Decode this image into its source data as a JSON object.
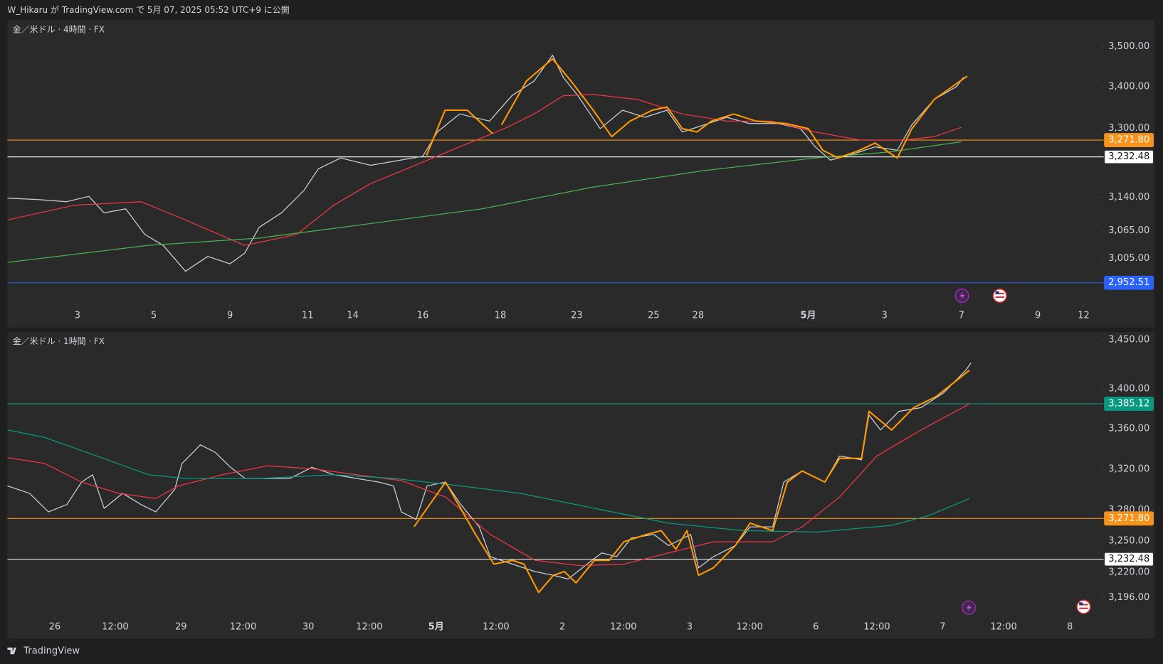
{
  "header": {
    "text": "W_Hikaru が TradingView.com で 5月 07, 2025 05:52 UTC+9 に公開"
  },
  "footer": {
    "brand": "TradingView"
  },
  "chart_data": [
    {
      "type": "line",
      "title": "金／米ドル · 4時間 · FX",
      "log": true,
      "grid": false,
      "xlim": [
        0,
        172
      ],
      "ylim": [
        2908,
        3567
      ],
      "xticks": [
        {
          "value": 11,
          "label": "3"
        },
        {
          "value": 23,
          "label": "5"
        },
        {
          "value": 35,
          "label": "9"
        },
        {
          "value": 47.2,
          "label": "11"
        },
        {
          "value": 54.3,
          "label": "14"
        },
        {
          "value": 65.3,
          "label": "16"
        },
        {
          "value": 77.5,
          "label": "18"
        },
        {
          "value": 89.5,
          "label": "23"
        },
        {
          "value": 101.6,
          "label": "25"
        },
        {
          "value": 108.6,
          "label": "28"
        },
        {
          "value": 125.9,
          "label": "5月"
        },
        {
          "value": 137.9,
          "label": "3"
        },
        {
          "value": 150,
          "label": "7"
        },
        {
          "value": 162,
          "label": "9"
        },
        {
          "value": 169.2,
          "label": "12"
        }
      ],
      "yticks": [
        {
          "value": 3500,
          "label": "3,500.00"
        },
        {
          "value": 3400,
          "label": "3,400.00"
        },
        {
          "value": 3300,
          "label": "3,300.00"
        },
        {
          "value": 3140,
          "label": "3,140.00"
        },
        {
          "value": 3065,
          "label": "3,065.00"
        },
        {
          "value": 3005,
          "label": "3,005.00"
        }
      ],
      "price_lines": [
        {
          "value": 3271.8,
          "label": "3,271.80",
          "color": "#f7931a"
        },
        {
          "value": 3232.48,
          "label": "3,232.48",
          "color": "#ffffff"
        },
        {
          "value": 2952.51,
          "label": "2,952.51",
          "color": "#2962ff"
        }
      ],
      "series": [
        {
          "color": "#c9d1d9",
          "width": 1.2,
          "x": [
            0,
            4.7,
            9.3,
            12.8,
            15.2,
            18.6,
            21.6,
            24.5,
            28,
            31.5,
            35,
            37.3,
            39.6,
            43.1,
            46.6,
            48.9,
            52.4,
            57.1,
            61.8,
            65.3,
            67.6,
            71.1,
            75.8,
            79.3,
            82.8,
            85.7,
            87.4,
            89.7,
            93.2,
            96.7,
            100.2,
            103.7,
            106.1,
            109.6,
            113.1,
            116.6,
            121.2,
            124.7,
            127,
            129.4,
            132.9,
            136.4,
            139.9,
            142.2,
            145.7,
            149.2,
            150.3
          ],
          "values": [
            3138,
            3135,
            3130,
            3142,
            3105,
            3114,
            3057,
            3033,
            2977,
            3009,
            2993,
            3016,
            3073,
            3105,
            3155,
            3205,
            3230,
            3213,
            3225,
            3234,
            3291,
            3334,
            3317,
            3378,
            3414,
            3478,
            3423,
            3378,
            3299,
            3343,
            3326,
            3343,
            3291,
            3308,
            3326,
            3311,
            3311,
            3299,
            3256,
            3225,
            3239,
            3256,
            3248,
            3308,
            3369,
            3400,
            3423
          ]
        },
        {
          "color": "#f23645",
          "width": 1.2,
          "x": [
            0,
            10.5,
            21,
            28,
            37.3,
            45.5,
            51.3,
            57.1,
            64.1,
            71.1,
            78.1,
            82.8,
            87.4,
            92.1,
            99.1,
            106.1,
            113.1,
            120.1,
            127,
            134,
            141,
            145.7,
            150
          ],
          "values": [
            3089,
            3122,
            3130,
            3089,
            3033,
            3057,
            3122,
            3171,
            3213,
            3256,
            3299,
            3334,
            3378,
            3381,
            3369,
            3334,
            3317,
            3317,
            3291,
            3272,
            3272,
            3280,
            3302
          ]
        },
        {
          "color": "#4caf50",
          "width": 1.2,
          "x": [
            0,
            22.1,
            39.6,
            57.1,
            74.6,
            92.1,
            109.6,
            127,
            138.7,
            150
          ],
          "values": [
            2996,
            3033,
            3049,
            3081,
            3114,
            3163,
            3201,
            3230,
            3244,
            3268
          ]
        },
        {
          "color": "#ff9800",
          "width": 2,
          "x": [
            65.9,
            68.8,
            72.3,
            76.3,
            77,
            77.7,
            81.6,
            85.7,
            88.6,
            92.1,
            95,
            97.9,
            101.4,
            103.7,
            106.1,
            108.4,
            110.7,
            114.2,
            117.7,
            122.4,
            125.9,
            128.2,
            130.6,
            134,
            136.4,
            139.9,
            142.2,
            145.7,
            150.9
          ],
          "values": [
            3236,
            3343,
            3343,
            3287,
            null,
            3308,
            3414,
            3469,
            3414,
            3343,
            3280,
            3317,
            3343,
            3351,
            3299,
            3291,
            3317,
            3334,
            3317,
            3311,
            3299,
            3248,
            3230,
            3248,
            3265,
            3230,
            3299,
            3369,
            3426
          ]
        }
      ]
    },
    {
      "type": "line",
      "title": "金／米ドル · 1時間 · FX",
      "log": true,
      "grid": false,
      "xlim": [
        0,
        208
      ],
      "ylim": [
        3178,
        3458
      ],
      "xticks": [
        {
          "value": 9,
          "label": "26"
        },
        {
          "value": 20.5,
          "label": "12:00"
        },
        {
          "value": 33,
          "label": "29"
        },
        {
          "value": 44.8,
          "label": "12:00"
        },
        {
          "value": 57.2,
          "label": "30"
        },
        {
          "value": 68.8,
          "label": "12:00"
        },
        {
          "value": 81.5,
          "label": "5月"
        },
        {
          "value": 92.9,
          "label": "12:00"
        },
        {
          "value": 105.5,
          "label": "2"
        },
        {
          "value": 117.1,
          "label": "12:00"
        },
        {
          "value": 129.7,
          "label": "3"
        },
        {
          "value": 141.1,
          "label": "12:00"
        },
        {
          "value": 153.7,
          "label": "6"
        },
        {
          "value": 165.3,
          "label": "12:00"
        },
        {
          "value": 177.8,
          "label": "7"
        },
        {
          "value": 189.4,
          "label": "12:00"
        },
        {
          "value": 202,
          "label": "8"
        }
      ],
      "yticks": [
        {
          "value": 3450,
          "label": "3,450.00"
        },
        {
          "value": 3400,
          "label": "3,400.00"
        },
        {
          "value": 3360,
          "label": "3,360.00"
        },
        {
          "value": 3320,
          "label": "3,320.00"
        },
        {
          "value": 3280,
          "label": "3,280.00"
        },
        {
          "value": 3250,
          "label": "3,250.00"
        },
        {
          "value": 3220,
          "label": "3,220.00"
        },
        {
          "value": 3196,
          "label": "3,196.00"
        }
      ],
      "price_lines": [
        {
          "value": 3385.12,
          "label": "3,385.12",
          "color": "#089981"
        },
        {
          "value": 3271.8,
          "label": "3,271.80",
          "color": "#f7931a"
        },
        {
          "value": 3232.48,
          "label": "3,232.48",
          "color": "#ffffff"
        }
      ],
      "series": [
        {
          "color": "#c9d1d9",
          "width": 1.2,
          "x": [
            0,
            4.2,
            7.8,
            11.3,
            14.1,
            16.2,
            18.4,
            21.9,
            25.4,
            28.2,
            31.8,
            33.2,
            36.7,
            39.5,
            42.4,
            45.2,
            49.4,
            53.7,
            57.9,
            62.1,
            66.4,
            70.6,
            73.4,
            74.9,
            77.7,
            79.8,
            83.3,
            86.2,
            89.7,
            91.8,
            96,
            100.3,
            103.8,
            106.6,
            110.2,
            113,
            115.8,
            118.6,
            122.9,
            125.7,
            129.9,
            131.4,
            134.2,
            138.4,
            141.2,
            145.5,
            147.6,
            151.1,
            155.4,
            158.2,
            162.4,
            163.8,
            166,
            169.5,
            173.7,
            178,
            182.2,
            183.2
          ],
          "values": [
            3303.6,
            3296.3,
            3278.2,
            3285.4,
            3307.3,
            3314.6,
            3281.7,
            3296.3,
            3285.4,
            3278.2,
            3300.0,
            3325.6,
            3344.1,
            3336.7,
            3321.9,
            3310.9,
            3310.9,
            3310.9,
            3321.9,
            3314.6,
            3310.9,
            3307.3,
            3303.6,
            3278.2,
            3270.9,
            3303.6,
            3307.3,
            3285.4,
            3263.7,
            3234.9,
            3227.8,
            3220.6,
            3217.1,
            3213.5,
            3227.8,
            3238.5,
            3234.9,
            3252.8,
            3256.4,
            3245.6,
            3256.4,
            3224.2,
            3234.9,
            3245.6,
            3263.7,
            3263.7,
            3307.3,
            3318.3,
            3307.3,
            3333.0,
            3329.3,
            3373.8,
            3358.9,
            3377.5,
            3381.2,
            3396.2,
            3418.9,
            3426.4
          ]
        },
        {
          "color": "#f23645",
          "width": 1.2,
          "x": [
            0,
            7.1,
            14.1,
            21.2,
            28.2,
            32.5,
            40.9,
            49.4,
            57.9,
            66.4,
            74.9,
            83.3,
            91.8,
            100.3,
            108.8,
            117.2,
            125.7,
            134.2,
            145.5,
            151.1,
            158.2,
            165.3,
            173.7,
            182.9
          ],
          "values": [
            3331.5,
            3325.6,
            3307.3,
            3296.3,
            3291.2,
            3303.6,
            3314.6,
            3323.4,
            3320.5,
            3314.6,
            3308.7,
            3292.7,
            3256.4,
            3231.4,
            3226.3,
            3227.8,
            3238.5,
            3249.2,
            3249.2,
            3263.7,
            3292.7,
            3333.0,
            3358.9,
            3385.0
          ]
        },
        {
          "color": "#089981",
          "width": 1.2,
          "x": [
            0,
            7.1,
            17,
            26.8,
            33.9,
            48,
            62.1,
            73.4,
            86.2,
            97.5,
            111.6,
            125.7,
            139.8,
            153.9,
            168.1,
            175.1,
            182.9
          ],
          "values": [
            3358.9,
            3351.4,
            3333.0,
            3314.6,
            3310.9,
            3310.9,
            3314.6,
            3310.9,
            3303.6,
            3296.3,
            3281.7,
            3267.3,
            3260.0,
            3258.6,
            3265.1,
            3274.5,
            3291.2
          ]
        },
        {
          "color": "#ff9800",
          "width": 2,
          "x": [
            77.3,
            83.3,
            89,
            92.5,
            96,
            98.2,
            101,
            103.8,
            105.9,
            108.1,
            111.6,
            114.4,
            117.2,
            121.5,
            124.3,
            127.1,
            129.2,
            131.4,
            134.2,
            138.4,
            141.2,
            145.5,
            148.3,
            151.1,
            155.4,
            158.2,
            162.4,
            163.8,
            168.1,
            172.3,
            176.6,
            182.9
          ],
          "values": [
            3263.7,
            3307.3,
            3256.4,
            3227.8,
            3231.4,
            3227.8,
            3200.7,
            3217.1,
            3220.6,
            3209.9,
            3231.4,
            3231.4,
            3249.2,
            3256.4,
            3260.0,
            3242.0,
            3260.0,
            3217.1,
            3224.2,
            3245.6,
            3267.3,
            3260.0,
            3307.3,
            3318.3,
            3307.3,
            3330.7,
            3330.7,
            3377.5,
            3358.9,
            3381.2,
            3392.5,
            3418.9
          ]
        }
      ]
    }
  ]
}
